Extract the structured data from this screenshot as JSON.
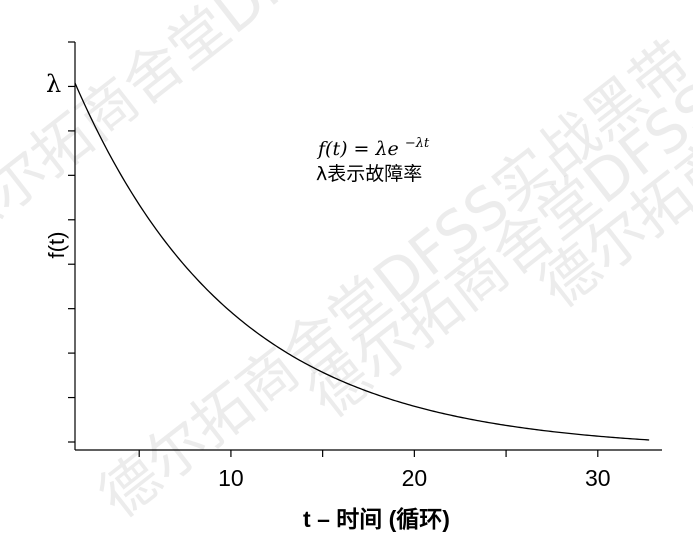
{
  "watermark": "德尔拓商舍堂DFSS实战黑带",
  "chart_data": {
    "type": "line",
    "title": "",
    "xlabel": "t – 时间 (循环)",
    "ylabel": "f(t)",
    "x_tick_labels": [
      "10",
      "20",
      "30"
    ],
    "x_ticks_labeled": [
      10,
      20,
      30
    ],
    "x_ticks_minor": [
      5,
      15,
      25
    ],
    "xlim": [
      1.5,
      33.5
    ],
    "y_tick_label": "λ",
    "y_ticks_count": 10,
    "ylim": [
      0,
      1
    ],
    "lambda": 0.115,
    "x_range": [
      1.5,
      32.8
    ],
    "formula": "f(t) = λe⁻ᵏᵗ",
    "formula_text": "f(t) = λe",
    "formula_sup": "−λt",
    "annotation": "λ表示故障率",
    "grid": false,
    "legend": "none"
  }
}
